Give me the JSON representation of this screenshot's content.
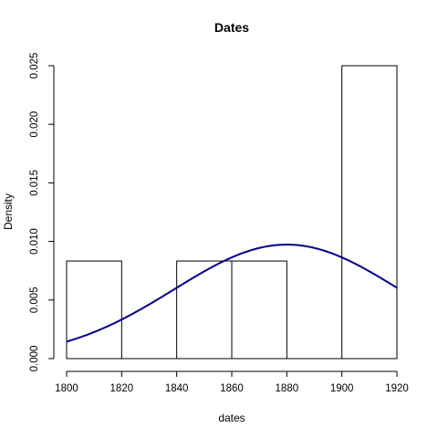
{
  "chart_data": {
    "type": "bar",
    "title": "Dates",
    "xlabel": "dates",
    "ylabel": "Density",
    "xlim": [
      1800,
      1920
    ],
    "ylim": [
      0,
      0.025
    ],
    "x_ticks": [
      "1800",
      "1820",
      "1840",
      "1860",
      "1880",
      "1900",
      "1920"
    ],
    "y_ticks": [
      "0.000",
      "0.005",
      "0.010",
      "0.015",
      "0.020",
      "0.025"
    ],
    "bins": [
      {
        "from": 1800,
        "to": 1820,
        "density": 0.00833
      },
      {
        "from": 1820,
        "to": 1840,
        "density": 0
      },
      {
        "from": 1840,
        "to": 1860,
        "density": 0.00833
      },
      {
        "from": 1860,
        "to": 1880,
        "density": 0.00833
      },
      {
        "from": 1880,
        "to": 1900,
        "density": 0
      },
      {
        "from": 1900,
        "to": 1920,
        "density": 0.025
      }
    ],
    "curve": {
      "type": "normal-density",
      "mean": 1880,
      "sd": 41,
      "color": "#00008B",
      "x_range": [
        1800,
        1920
      ]
    },
    "grid": false,
    "legend": "none"
  }
}
